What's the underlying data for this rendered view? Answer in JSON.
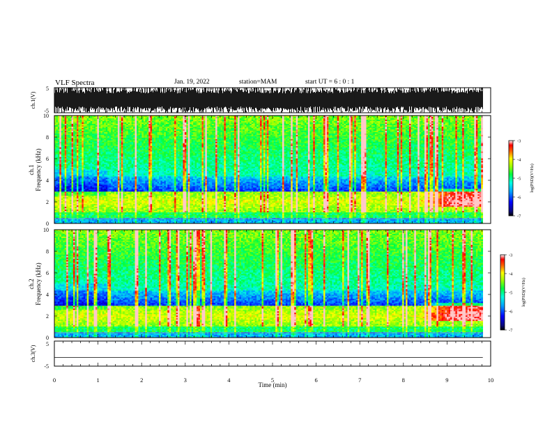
{
  "header": {
    "title": "VLF Spectra",
    "date": "Jan. 19, 2022",
    "station": "station=MAM",
    "start_ut": "start UT =  6 : 0 : 1"
  },
  "chart_data": [
    {
      "type": "line",
      "panel": "ch1-waveform",
      "ylabel": "ch.1(V)",
      "ylim": [
        -5,
        5
      ],
      "yticks": [
        "5",
        "-5"
      ],
      "description_values": "dense impulsive waveform spanning nearly full +/-5 V range",
      "xlim": [
        0,
        9.82
      ]
    },
    {
      "type": "heatmap",
      "panel": "ch1-spectrogram",
      "ylabel": "ch.1\nFrequency (kHz)",
      "ylim": [
        0,
        10
      ],
      "yticks": [
        "0",
        "2",
        "4",
        "6",
        "8",
        "10"
      ],
      "xlim": [
        0,
        9.82
      ],
      "colorbar": {
        "label": "log(PSD)(V²/Hz)",
        "range": [
          -7,
          -3
        ],
        "ticks": [
          "-3",
          "-4",
          "-5",
          "-6",
          "-7"
        ]
      },
      "features": {
        "low_band_kHz": [
          1.0,
          3.0
        ],
        "intense_band_start_min": 8.3,
        "intense_band_kHz": [
          1.5,
          3.0
        ]
      }
    },
    {
      "type": "heatmap",
      "panel": "ch2-spectrogram",
      "ylabel": "ch.2\nFrequency (kHz)",
      "ylim": [
        0,
        10
      ],
      "yticks": [
        "0",
        "2",
        "4",
        "6",
        "8",
        "10"
      ],
      "xlim": [
        0,
        9.82
      ],
      "colorbar": {
        "label": "log(PSD)(V²/Hz)",
        "range": [
          -7,
          -3
        ],
        "ticks": [
          "-3",
          "-4",
          "-5",
          "-6",
          "-7"
        ]
      },
      "features": {
        "low_band_kHz": [
          1.0,
          3.0
        ],
        "intense_band_start_min": 8.3,
        "intense_band_kHz": [
          1.5,
          3.0
        ]
      }
    },
    {
      "type": "line",
      "panel": "ch3-waveform",
      "ylabel": "ch.3(V)",
      "ylim": [
        -5,
        5
      ],
      "yticks": [
        "5",
        "-5"
      ],
      "x": [
        0,
        9.82
      ],
      "values": [
        -1.5,
        -1.5
      ],
      "xlabel": "Time (min)",
      "xlim": [
        0,
        10
      ],
      "xticks": [
        "0",
        "1",
        "2",
        "3",
        "4",
        "5",
        "6",
        "7",
        "8",
        "9",
        "10"
      ]
    }
  ]
}
